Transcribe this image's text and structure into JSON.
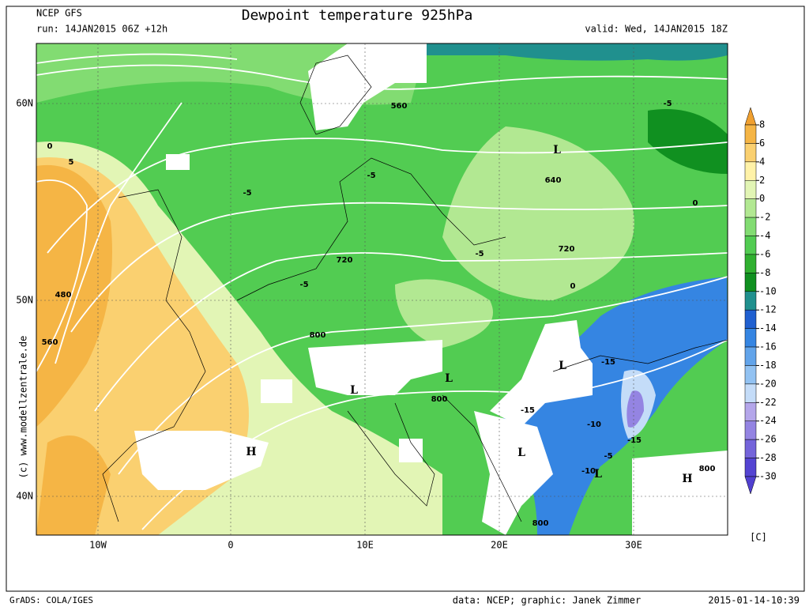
{
  "header": {
    "model": "NCEP GFS",
    "run": "run: 14JAN2015 06Z +12h",
    "title": "Dewpoint temperature 925hPa",
    "valid": "valid: Wed, 14JAN2015 18Z"
  },
  "map": {
    "lat_labels": [
      "60N",
      "50N",
      "40N"
    ],
    "lon_labels": [
      "10W",
      "0",
      "10E",
      "20E",
      "30E"
    ],
    "credit": "(c) www.modellzentrale.de",
    "labels": [
      "560",
      "640",
      "720",
      "720",
      "800",
      "800",
      "800",
      "800",
      "480",
      "560",
      "-5",
      "-5",
      "-5",
      "-5",
      "-5",
      "-15",
      "-15",
      "-10",
      "-15",
      "-5",
      "-10",
      "0",
      "0",
      "0",
      "5",
      "L",
      "L",
      "L",
      "L",
      "L",
      "L",
      "H",
      "H"
    ]
  },
  "colorbar": {
    "ticks": [
      8,
      6,
      4,
      2,
      0,
      -2,
      -4,
      -6,
      -8,
      -10,
      -12,
      -14,
      -16,
      -18,
      -20,
      -22,
      -24,
      -26,
      -28,
      -30
    ],
    "colors": [
      "#f0a030",
      "#f5b545",
      "#fad070",
      "#fff2a8",
      "#e2f5b5",
      "#b2e892",
      "#82dc72",
      "#52cc52",
      "#30b030",
      "#109020",
      "#20908e",
      "#2060d0",
      "#3585e2",
      "#62a4ea",
      "#92c2f2",
      "#c4dcf8",
      "#b4a6ea",
      "#9484e2",
      "#7464da",
      "#5444d2",
      "#5040d0"
    ],
    "unit": "[C]"
  },
  "footer": {
    "left": "GrADS: COLA/IGES",
    "center": "data: NCEP; graphic: Janek Zimmer",
    "right": "2015-01-14-10:39"
  }
}
